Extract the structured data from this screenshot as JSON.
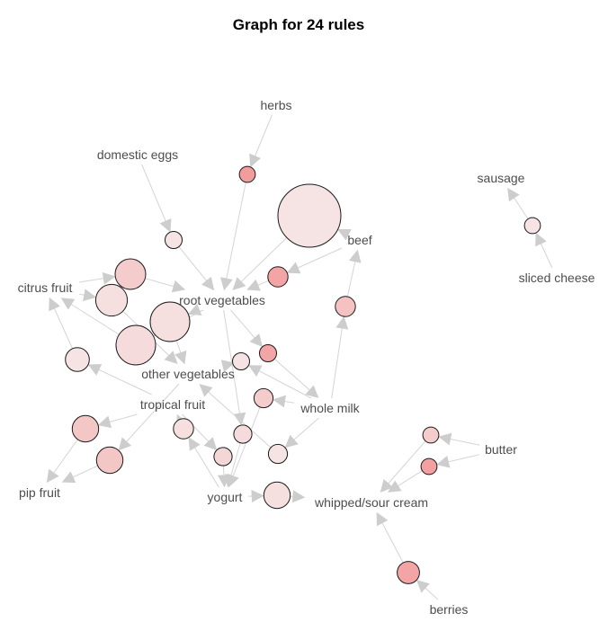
{
  "title": "Graph for 24 rules",
  "colors": {
    "edge": "#d4d4d4",
    "arrowhead": "#cdcdcd",
    "label": "#4d4d4d",
    "node_stroke": "#1a1a1a",
    "node_fill_low": "#f6eeee",
    "node_fill_high": "#f28d8d"
  },
  "items": [
    {
      "id": "herbs",
      "label": "herbs"
    },
    {
      "id": "domestic_eggs",
      "label": "domestic eggs"
    },
    {
      "id": "beef",
      "label": "beef"
    },
    {
      "id": "citrus_fruit",
      "label": "citrus fruit"
    },
    {
      "id": "root_vegetables",
      "label": "root vegetables"
    },
    {
      "id": "other_vegetables",
      "label": "other vegetables"
    },
    {
      "id": "tropical_fruit",
      "label": "tropical fruit"
    },
    {
      "id": "whole_milk",
      "label": "whole milk"
    },
    {
      "id": "butter",
      "label": "butter"
    },
    {
      "id": "pip_fruit",
      "label": "pip fruit"
    },
    {
      "id": "yogurt",
      "label": "yogurt"
    },
    {
      "id": "whipped_sour_cream",
      "label": "whipped/sour cream"
    },
    {
      "id": "berries",
      "label": "berries"
    },
    {
      "id": "sausage",
      "label": "sausage"
    },
    {
      "id": "sliced_cheese",
      "label": "sliced cheese"
    }
  ],
  "rules": [
    {
      "id": "r1",
      "lhs": [
        "herbs"
      ],
      "rhs": [
        "root_vegetables"
      ],
      "size": 0.1,
      "color": 0.85
    },
    {
      "id": "r2",
      "lhs": [
        "beef"
      ],
      "rhs": [
        "root_vegetables"
      ],
      "size": 1.0,
      "color": 0.1
    },
    {
      "id": "r3",
      "lhs": [
        "domestic_eggs"
      ],
      "rhs": [
        "root_vegetables"
      ],
      "size": 0.12,
      "color": 0.1
    },
    {
      "id": "r4",
      "lhs": [
        "citrus_fruit"
      ],
      "rhs": [
        "root_vegetables"
      ],
      "size": 0.38,
      "color": 0.35
    },
    {
      "id": "r5",
      "lhs": [
        "citrus_fruit"
      ],
      "rhs": [
        "other_vegetables"
      ],
      "size": 0.4,
      "color": 0.15
    },
    {
      "id": "r6",
      "lhs": [
        "root_vegetables"
      ],
      "rhs": [
        "other_vegetables"
      ],
      "size": 0.55,
      "color": 0.15
    },
    {
      "id": "r7",
      "lhs": [
        "root_vegetables"
      ],
      "rhs": [
        "citrus_fruit"
      ],
      "size": 0.55,
      "color": 0.2
    },
    {
      "id": "r8",
      "lhs": [
        "beef"
      ],
      "rhs": [
        "root_vegetables"
      ],
      "size": 0.18,
      "color": 0.75
    },
    {
      "id": "r9",
      "lhs": [
        "whole_milk"
      ],
      "rhs": [
        "beef"
      ],
      "size": 0.18,
      "color": 0.45
    },
    {
      "id": "r10",
      "lhs": [
        "tropical_fruit"
      ],
      "rhs": [
        "citrus_fruit"
      ],
      "size": 0.25,
      "color": 0.1
    },
    {
      "id": "r11",
      "lhs": [
        "root_vegetables"
      ],
      "rhs": [
        "whole_milk"
      ],
      "size": 0.12,
      "color": 0.75
    },
    {
      "id": "r12",
      "lhs": [
        "whole_milk"
      ],
      "rhs": [
        "other_vegetables"
      ],
      "size": 0.12,
      "color": 0.1
    },
    {
      "id": "r13",
      "lhs": [
        "tropical_fruit"
      ],
      "rhs": [
        "pip_fruit"
      ],
      "size": 0.3,
      "color": 0.4
    },
    {
      "id": "r14",
      "lhs": [
        "other_vegetables"
      ],
      "rhs": [
        "pip_fruit"
      ],
      "size": 0.3,
      "color": 0.4
    },
    {
      "id": "r15",
      "lhs": [
        "yogurt"
      ],
      "rhs": [
        "tropical_fruit"
      ],
      "size": 0.18,
      "color": 0.15
    },
    {
      "id": "r16",
      "lhs": [
        "whole_milk"
      ],
      "rhs": [
        "yogurt"
      ],
      "size": 0.16,
      "color": 0.35
    },
    {
      "id": "r17",
      "lhs": [
        "root_vegetables"
      ],
      "rhs": [
        "yogurt"
      ],
      "size": 0.14,
      "color": 0.2
    },
    {
      "id": "r18",
      "lhs": [
        "tropical_fruit"
      ],
      "rhs": [
        "yogurt"
      ],
      "size": 0.14,
      "color": 0.25
    },
    {
      "id": "r19",
      "lhs": [
        "whole_milk"
      ],
      "rhs": [
        "other_vegetables"
      ],
      "size": 0.16,
      "color": 0.1
    },
    {
      "id": "r20",
      "lhs": [
        "yogurt"
      ],
      "rhs": [
        "whipped_sour_cream"
      ],
      "size": 0.3,
      "color": 0.15
    },
    {
      "id": "r21",
      "lhs": [
        "butter"
      ],
      "rhs": [
        "whipped_sour_cream"
      ],
      "size": 0.1,
      "color": 0.35
    },
    {
      "id": "r22",
      "lhs": [
        "butter"
      ],
      "rhs": [
        "whipped_sour_cream"
      ],
      "size": 0.1,
      "color": 0.8
    },
    {
      "id": "r23",
      "lhs": [
        "berries"
      ],
      "rhs": [
        "whipped_sour_cream"
      ],
      "size": 0.22,
      "color": 0.75
    },
    {
      "id": "r24",
      "lhs": [
        "sliced_cheese"
      ],
      "rhs": [
        "sausage"
      ],
      "size": 0.1,
      "color": 0.1
    }
  ]
}
